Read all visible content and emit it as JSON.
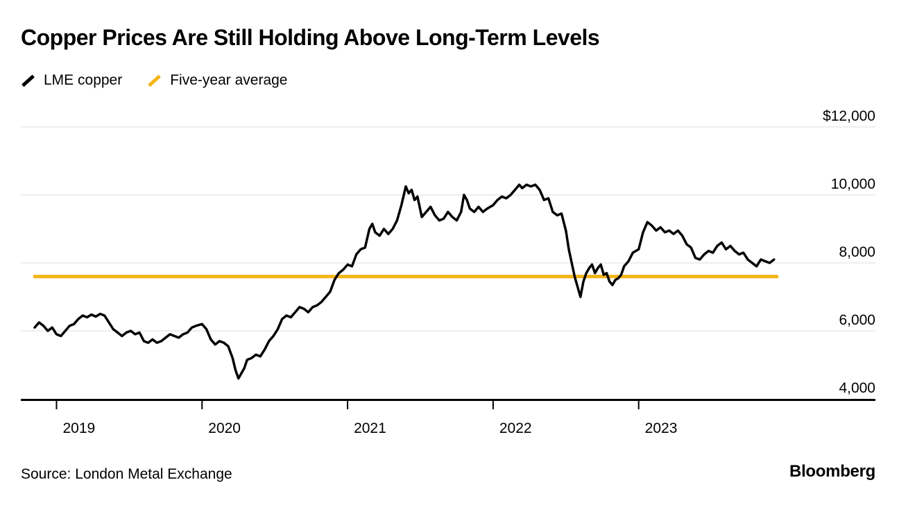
{
  "header": {
    "title": "Copper Prices Are Still Holding Above Long-Term Levels"
  },
  "legend": [
    {
      "label": "LME copper",
      "color": "#000000"
    },
    {
      "label": "Five-year average",
      "color": "#f4b41a"
    }
  ],
  "footer": {
    "source": "Source: London Metal Exchange",
    "brand": "Bloomberg"
  },
  "chart_data": {
    "type": "line",
    "title": "Copper Prices Are Still Holding Above Long-Term Levels",
    "xlabel": "",
    "ylabel": "",
    "grid": true,
    "legend_position": "top-left",
    "xlim": [
      2018.85,
      2023.95
    ],
    "ylim": [
      4000,
      12000
    ],
    "x_ticks": [
      {
        "value": 2019,
        "label": "2019"
      },
      {
        "value": 2020,
        "label": "2020"
      },
      {
        "value": 2021,
        "label": "2021"
      },
      {
        "value": 2022,
        "label": "2022"
      },
      {
        "value": 2023,
        "label": "2023"
      }
    ],
    "y_ticks": [
      {
        "value": 12000,
        "label": "$12,000"
      },
      {
        "value": 10000,
        "label": "10,000"
      },
      {
        "value": 8000,
        "label": "8,000"
      },
      {
        "value": 6000,
        "label": "6,000"
      },
      {
        "value": 4000,
        "label": "4,000"
      }
    ],
    "series": [
      {
        "name": "Five-year average",
        "color": "#f4b41a",
        "stroke_width": 5,
        "points": [
          [
            2018.85,
            7600
          ],
          [
            2023.95,
            7600
          ]
        ]
      },
      {
        "name": "LME copper",
        "color": "#000000",
        "stroke_width": 3.5,
        "points": [
          [
            2018.85,
            6100
          ],
          [
            2018.88,
            6250
          ],
          [
            2018.91,
            6150
          ],
          [
            2018.94,
            6000
          ],
          [
            2018.97,
            6100
          ],
          [
            2019.0,
            5900
          ],
          [
            2019.03,
            5850
          ],
          [
            2019.06,
            6000
          ],
          [
            2019.09,
            6150
          ],
          [
            2019.12,
            6200
          ],
          [
            2019.15,
            6350
          ],
          [
            2019.18,
            6450
          ],
          [
            2019.21,
            6400
          ],
          [
            2019.24,
            6480
          ],
          [
            2019.27,
            6420
          ],
          [
            2019.3,
            6500
          ],
          [
            2019.33,
            6450
          ],
          [
            2019.36,
            6250
          ],
          [
            2019.39,
            6050
          ],
          [
            2019.42,
            5950
          ],
          [
            2019.45,
            5850
          ],
          [
            2019.48,
            5950
          ],
          [
            2019.51,
            6000
          ],
          [
            2019.54,
            5900
          ],
          [
            2019.57,
            5950
          ],
          [
            2019.6,
            5700
          ],
          [
            2019.63,
            5650
          ],
          [
            2019.66,
            5750
          ],
          [
            2019.69,
            5650
          ],
          [
            2019.72,
            5700
          ],
          [
            2019.75,
            5800
          ],
          [
            2019.78,
            5900
          ],
          [
            2019.81,
            5850
          ],
          [
            2019.84,
            5800
          ],
          [
            2019.87,
            5900
          ],
          [
            2019.9,
            5950
          ],
          [
            2019.93,
            6100
          ],
          [
            2019.96,
            6150
          ],
          [
            2020.0,
            6200
          ],
          [
            2020.03,
            6050
          ],
          [
            2020.06,
            5750
          ],
          [
            2020.09,
            5600
          ],
          [
            2020.12,
            5700
          ],
          [
            2020.15,
            5650
          ],
          [
            2020.18,
            5550
          ],
          [
            2020.21,
            5200
          ],
          [
            2020.23,
            4850
          ],
          [
            2020.25,
            4600
          ],
          [
            2020.27,
            4750
          ],
          [
            2020.29,
            4900
          ],
          [
            2020.31,
            5150
          ],
          [
            2020.34,
            5200
          ],
          [
            2020.37,
            5300
          ],
          [
            2020.4,
            5250
          ],
          [
            2020.43,
            5450
          ],
          [
            2020.46,
            5700
          ],
          [
            2020.49,
            5850
          ],
          [
            2020.52,
            6050
          ],
          [
            2020.55,
            6350
          ],
          [
            2020.58,
            6450
          ],
          [
            2020.61,
            6400
          ],
          [
            2020.64,
            6550
          ],
          [
            2020.67,
            6700
          ],
          [
            2020.7,
            6650
          ],
          [
            2020.73,
            6550
          ],
          [
            2020.76,
            6700
          ],
          [
            2020.79,
            6750
          ],
          [
            2020.82,
            6850
          ],
          [
            2020.85,
            7000
          ],
          [
            2020.88,
            7150
          ],
          [
            2020.91,
            7500
          ],
          [
            2020.94,
            7700
          ],
          [
            2020.97,
            7800
          ],
          [
            2021.0,
            7950
          ],
          [
            2021.03,
            7900
          ],
          [
            2021.06,
            8250
          ],
          [
            2021.09,
            8400
          ],
          [
            2021.12,
            8450
          ],
          [
            2021.15,
            9000
          ],
          [
            2021.17,
            9150
          ],
          [
            2021.19,
            8900
          ],
          [
            2021.22,
            8800
          ],
          [
            2021.25,
            9000
          ],
          [
            2021.28,
            8850
          ],
          [
            2021.31,
            9000
          ],
          [
            2021.34,
            9250
          ],
          [
            2021.37,
            9700
          ],
          [
            2021.4,
            10250
          ],
          [
            2021.42,
            10050
          ],
          [
            2021.44,
            10150
          ],
          [
            2021.46,
            9850
          ],
          [
            2021.48,
            9950
          ],
          [
            2021.51,
            9350
          ],
          [
            2021.54,
            9500
          ],
          [
            2021.57,
            9650
          ],
          [
            2021.6,
            9400
          ],
          [
            2021.63,
            9250
          ],
          [
            2021.66,
            9300
          ],
          [
            2021.69,
            9500
          ],
          [
            2021.72,
            9350
          ],
          [
            2021.75,
            9250
          ],
          [
            2021.78,
            9500
          ],
          [
            2021.8,
            10000
          ],
          [
            2021.82,
            9850
          ],
          [
            2021.84,
            9600
          ],
          [
            2021.87,
            9500
          ],
          [
            2021.9,
            9650
          ],
          [
            2021.93,
            9500
          ],
          [
            2021.96,
            9600
          ],
          [
            2022.0,
            9700
          ],
          [
            2022.03,
            9850
          ],
          [
            2022.06,
            9950
          ],
          [
            2022.09,
            9900
          ],
          [
            2022.12,
            10000
          ],
          [
            2022.15,
            10150
          ],
          [
            2022.18,
            10300
          ],
          [
            2022.2,
            10200
          ],
          [
            2022.23,
            10300
          ],
          [
            2022.26,
            10250
          ],
          [
            2022.29,
            10300
          ],
          [
            2022.32,
            10150
          ],
          [
            2022.35,
            9850
          ],
          [
            2022.38,
            9900
          ],
          [
            2022.41,
            9500
          ],
          [
            2022.44,
            9400
          ],
          [
            2022.47,
            9450
          ],
          [
            2022.5,
            8950
          ],
          [
            2022.52,
            8400
          ],
          [
            2022.54,
            8000
          ],
          [
            2022.56,
            7600
          ],
          [
            2022.58,
            7300
          ],
          [
            2022.6,
            7000
          ],
          [
            2022.62,
            7450
          ],
          [
            2022.64,
            7700
          ],
          [
            2022.66,
            7850
          ],
          [
            2022.68,
            7950
          ],
          [
            2022.7,
            7700
          ],
          [
            2022.72,
            7850
          ],
          [
            2022.74,
            7950
          ],
          [
            2022.76,
            7650
          ],
          [
            2022.78,
            7700
          ],
          [
            2022.8,
            7450
          ],
          [
            2022.82,
            7350
          ],
          [
            2022.84,
            7500
          ],
          [
            2022.86,
            7550
          ],
          [
            2022.88,
            7650
          ],
          [
            2022.9,
            7900
          ],
          [
            2022.93,
            8050
          ],
          [
            2022.96,
            8300
          ],
          [
            2023.0,
            8400
          ],
          [
            2023.03,
            8900
          ],
          [
            2023.06,
            9200
          ],
          [
            2023.09,
            9100
          ],
          [
            2023.12,
            8950
          ],
          [
            2023.15,
            9050
          ],
          [
            2023.18,
            8900
          ],
          [
            2023.21,
            8950
          ],
          [
            2023.24,
            8850
          ],
          [
            2023.27,
            8950
          ],
          [
            2023.3,
            8800
          ],
          [
            2023.33,
            8550
          ],
          [
            2023.36,
            8450
          ],
          [
            2023.39,
            8150
          ],
          [
            2023.42,
            8100
          ],
          [
            2023.45,
            8250
          ],
          [
            2023.48,
            8350
          ],
          [
            2023.51,
            8300
          ],
          [
            2023.54,
            8500
          ],
          [
            2023.57,
            8600
          ],
          [
            2023.6,
            8400
          ],
          [
            2023.63,
            8500
          ],
          [
            2023.66,
            8350
          ],
          [
            2023.69,
            8250
          ],
          [
            2023.72,
            8300
          ],
          [
            2023.75,
            8100
          ],
          [
            2023.78,
            8000
          ],
          [
            2023.81,
            7900
          ],
          [
            2023.84,
            8100
          ],
          [
            2023.87,
            8050
          ],
          [
            2023.9,
            8000
          ],
          [
            2023.93,
            8100
          ]
        ]
      }
    ]
  }
}
